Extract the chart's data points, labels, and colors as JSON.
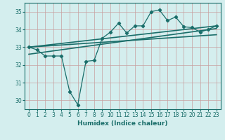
{
  "xlabel": "Humidex (Indice chaleur)",
  "xlim": [
    -0.5,
    23.5
  ],
  "ylim": [
    29.5,
    35.5
  ],
  "yticks": [
    30,
    31,
    32,
    33,
    34,
    35
  ],
  "xticks": [
    0,
    1,
    2,
    3,
    4,
    5,
    6,
    7,
    8,
    9,
    10,
    11,
    12,
    13,
    14,
    15,
    16,
    17,
    18,
    19,
    20,
    21,
    22,
    23
  ],
  "bg_color": "#d4eeee",
  "grid_color_major": "#c8a0a0",
  "grid_color_minor": "#c4d8d8",
  "line_color": "#1a6e6a",
  "data_x": [
    0,
    1,
    2,
    3,
    4,
    5,
    6,
    7,
    8,
    9,
    10,
    11,
    12,
    13,
    14,
    15,
    16,
    17,
    18,
    19,
    20,
    21,
    22,
    23
  ],
  "data_y": [
    33.0,
    32.85,
    32.5,
    32.5,
    32.5,
    30.5,
    29.75,
    32.2,
    32.25,
    33.5,
    33.85,
    34.35,
    33.8,
    34.2,
    34.2,
    35.0,
    35.1,
    34.5,
    34.7,
    34.15,
    34.1,
    33.85,
    34.0,
    34.2
  ],
  "trend1_x0": 0,
  "trend1_x1": 23,
  "trend1_y0": 33.0,
  "trend1_y1": 34.2,
  "trend2_x0": 0,
  "trend2_x1": 23,
  "trend2_y0": 33.0,
  "trend2_y1": 33.7,
  "trend3_x0": 0,
  "trend3_x1": 23,
  "trend3_y0": 32.6,
  "trend3_y1": 34.05
}
